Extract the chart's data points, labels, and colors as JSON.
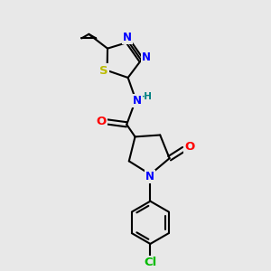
{
  "background_color": "#e8e8e8",
  "bond_color": "#000000",
  "bond_width": 1.5,
  "atom_colors": {
    "N": "#0000ff",
    "O": "#ff0000",
    "S": "#bbbb00",
    "Cl": "#00bb00",
    "C": "#000000",
    "H": "#008080"
  },
  "font_size": 8.5
}
